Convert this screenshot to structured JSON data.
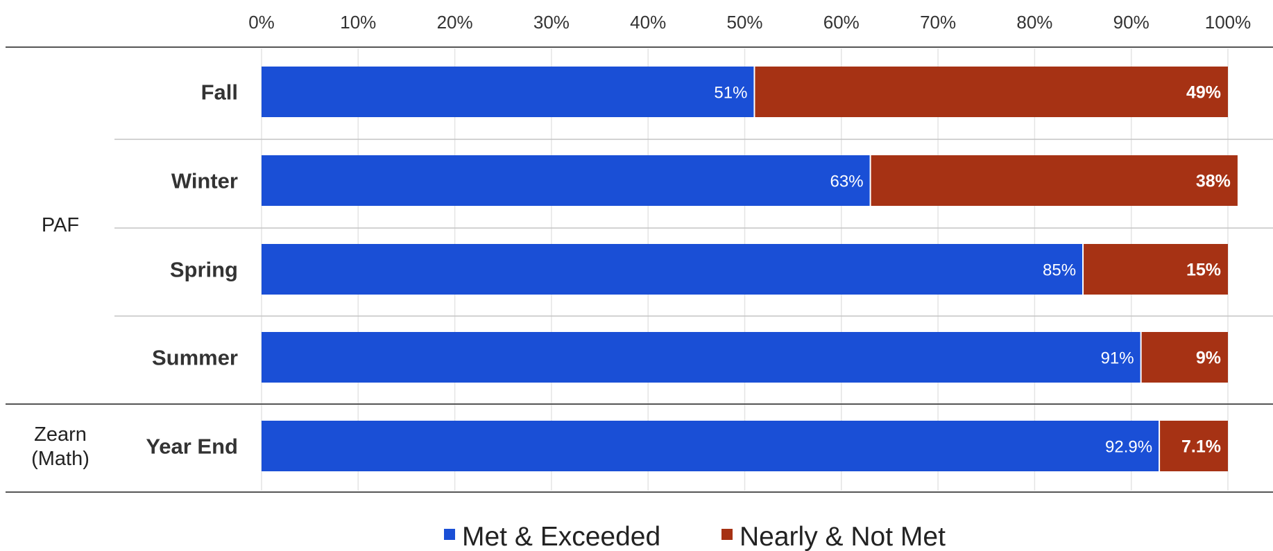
{
  "chart_data": {
    "type": "bar",
    "orientation": "horizontal",
    "stacked": true,
    "xlim": [
      0,
      100
    ],
    "x_ticks": [
      "0%",
      "10%",
      "20%",
      "30%",
      "40%",
      "50%",
      "60%",
      "70%",
      "80%",
      "90%",
      "100%"
    ],
    "categories": [
      "Fall",
      "Winter",
      "Spring",
      "Summer",
      "Year End"
    ],
    "groups": [
      {
        "label": "PAF",
        "categories": [
          "Fall",
          "Winter",
          "Spring",
          "Summer"
        ]
      },
      {
        "label": "Zearn (Math)",
        "label_lines": [
          "Zearn",
          "(Math)"
        ],
        "categories": [
          "Year End"
        ]
      }
    ],
    "series": [
      {
        "name": "Met & Exceeded",
        "color": "#1a4fd6",
        "values": [
          51,
          63,
          85,
          91,
          92.9
        ],
        "labels": [
          "51%",
          "63%",
          "85%",
          "91%",
          "92.9%"
        ]
      },
      {
        "name": "Nearly & Not Met",
        "color": "#a63214",
        "values": [
          49,
          38,
          15,
          9,
          7.1
        ],
        "labels": [
          "49%",
          "38%",
          "15%",
          "9%",
          "7.1%"
        ]
      }
    ],
    "grid": true,
    "legend_position": "bottom"
  }
}
